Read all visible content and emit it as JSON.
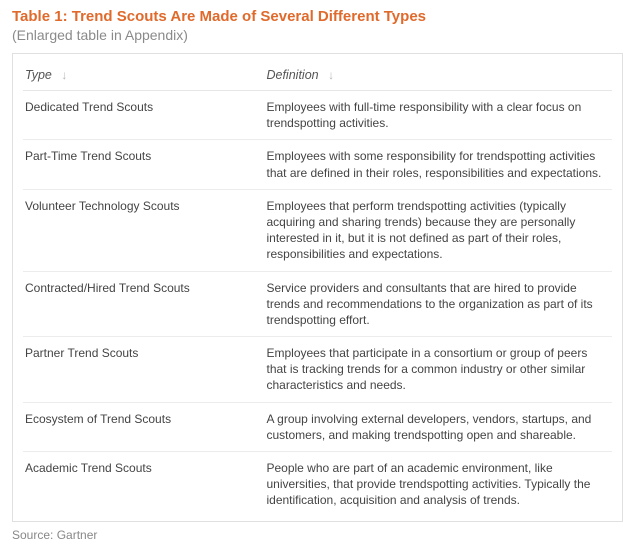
{
  "title": {
    "text": "Table 1: Trend Scouts Are Made of Several Different Types",
    "color": "#e06a2c"
  },
  "subtitle": {
    "text": "(Enlarged table in Appendix)",
    "color": "#8a8a8a"
  },
  "table": {
    "columns": [
      {
        "label": "Type",
        "sort_glyph": "↓"
      },
      {
        "label": "Definition",
        "sort_glyph": "↓"
      }
    ],
    "rows": [
      {
        "type": "Dedicated Trend Scouts",
        "definition": "Employees with full-time responsibility with a clear focus on trendspotting activities."
      },
      {
        "type": "Part-Time Trend Scouts",
        "definition": "Employees with some responsibility for trendspotting activities that are defined in their roles, responsibilities and expectations."
      },
      {
        "type": "Volunteer Technology Scouts",
        "definition": "Employees that perform trendspotting activities (typically acquiring and sharing trends) because they are personally interested in it, but it is not defined as part of their roles, responsibilities and expectations."
      },
      {
        "type": "Contracted/Hired Trend Scouts",
        "definition": "Service providers and consultants that are hired to provide trends and recommendations to the organization as part of its trendspotting effort."
      },
      {
        "type": "Partner Trend Scouts",
        "definition": "Employees that participate in a consortium or group of peers that is tracking trends for a common industry or other similar characteristics and needs."
      },
      {
        "type": "Ecosystem of Trend Scouts",
        "definition": "A group involving external developers, vendors, startups, and customers, and making trendspotting open and shareable."
      },
      {
        "type": "Academic Trend Scouts",
        "definition": "People who are part of an academic environment, like universities, that provide trendspotting activities. Typically the identification, acquisition and analysis of trends."
      }
    ]
  },
  "source": {
    "label": "Source: Gartner"
  }
}
